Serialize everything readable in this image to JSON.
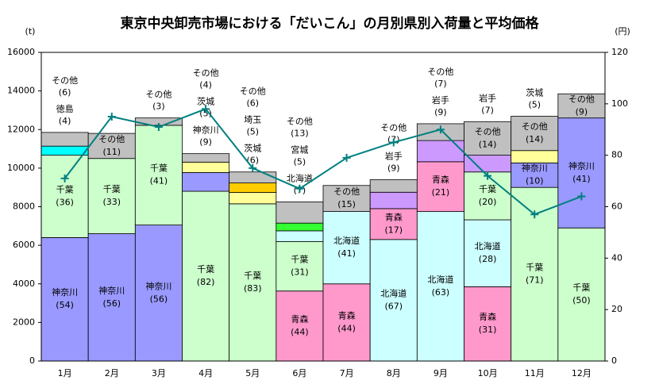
{
  "chart_data": {
    "type": "stacked_bar_line",
    "title": "東京中央卸売市場における「だいこん」の月別県別入荷量と平均価格",
    "y_unit": "(t)",
    "y2_unit": "(円)",
    "categories": [
      "1月",
      "2月",
      "3月",
      "4月",
      "5月",
      "6月",
      "7月",
      "8月",
      "9月",
      "10月",
      "11月",
      "12月"
    ],
    "ylim": [
      0,
      16000
    ],
    "yticks": [
      0,
      2000,
      4000,
      6000,
      8000,
      10000,
      12000,
      14000,
      16000
    ],
    "y2lim": [
      0,
      120
    ],
    "y2ticks": [
      0,
      20,
      40,
      60,
      80,
      100,
      120
    ],
    "stacks": [
      [
        {
          "name": "神奈川",
          "value": 6400,
          "share": "(54)",
          "color": "#9999ff"
        },
        {
          "name": "千葉",
          "value": 4270,
          "share": "(36)",
          "color": "#ccffcc"
        },
        {
          "name": "徳島",
          "value": 470,
          "share": "(4)",
          "color": "#00ffff"
        },
        {
          "name": "その他",
          "value": 710,
          "share": "(6)",
          "color": "#c0c0c0"
        }
      ],
      [
        {
          "name": "神奈川",
          "value": 6600,
          "share": "(56)",
          "color": "#9999ff"
        },
        {
          "name": "千葉",
          "value": 3900,
          "share": "(33)",
          "color": "#ccffcc"
        },
        {
          "name": "その他",
          "value": 1300,
          "share": "(11)",
          "color": "#c0c0c0"
        }
      ],
      [
        {
          "name": "神奈川",
          "value": 7050,
          "share": "(56)",
          "color": "#9999ff"
        },
        {
          "name": "千葉",
          "value": 5170,
          "share": "(41)",
          "color": "#ccffcc"
        },
        {
          "name": "その他",
          "value": 380,
          "share": "(3)",
          "color": "#c0c0c0"
        }
      ],
      [
        {
          "name": "千葉",
          "value": 8800,
          "share": "(82)",
          "color": "#ccffcc"
        },
        {
          "name": "神奈川",
          "value": 970,
          "share": "(9)",
          "color": "#9999ff"
        },
        {
          "name": "茨城",
          "value": 540,
          "share": "(5)",
          "color": "#ffff99"
        },
        {
          "name": "その他",
          "value": 440,
          "share": "(4)",
          "color": "#c0c0c0"
        }
      ],
      [
        {
          "name": "千葉",
          "value": 8150,
          "share": "(83)",
          "color": "#ccffcc"
        },
        {
          "name": "茨城",
          "value": 590,
          "share": "(6)",
          "color": "#ffff99"
        },
        {
          "name": "埼玉",
          "value": 490,
          "share": "(5)",
          "color": "#ffcc00"
        },
        {
          "name": "その他",
          "value": 570,
          "share": "(6)",
          "color": "#c0c0c0"
        }
      ],
      [
        {
          "name": "青森",
          "value": 3630,
          "share": "(44)",
          "color": "#ff99cc"
        },
        {
          "name": "千葉",
          "value": 2560,
          "share": "(31)",
          "color": "#ccffcc"
        },
        {
          "name": "北海道",
          "value": 560,
          "share": "(7)",
          "color": "#ccffff"
        },
        {
          "name": "宮城",
          "value": 400,
          "share": "(5)",
          "color": "#33ff33"
        },
        {
          "name": "その他",
          "value": 1100,
          "share": "(13)",
          "color": "#c0c0c0"
        }
      ],
      [
        {
          "name": "青森",
          "value": 4000,
          "share": "(44)",
          "color": "#ff99cc"
        },
        {
          "name": "北海道",
          "value": 3750,
          "share": "(41)",
          "color": "#ccffff"
        },
        {
          "name": "その他",
          "value": 1350,
          "share": "(15)",
          "color": "#c0c0c0"
        }
      ],
      [
        {
          "name": "北海道",
          "value": 6300,
          "share": "(67)",
          "color": "#ccffff"
        },
        {
          "name": "青森",
          "value": 1600,
          "share": "(17)",
          "color": "#ff99cc"
        },
        {
          "name": "岩手",
          "value": 850,
          "share": "(9)",
          "color": "#cc99ff"
        },
        {
          "name": "その他",
          "value": 650,
          "share": "(7)",
          "color": "#c0c0c0"
        }
      ],
      [
        {
          "name": "北海道",
          "value": 7750,
          "share": "(63)",
          "color": "#ccffff"
        },
        {
          "name": "青森",
          "value": 2580,
          "share": "(21)",
          "color": "#ff99cc"
        },
        {
          "name": "岩手",
          "value": 1100,
          "share": "(9)",
          "color": "#cc99ff"
        },
        {
          "name": "その他",
          "value": 870,
          "share": "(7)",
          "color": "#c0c0c0"
        }
      ],
      [
        {
          "name": "青森",
          "value": 3850,
          "share": "(31)",
          "color": "#ff99cc"
        },
        {
          "name": "北海道",
          "value": 3470,
          "share": "(28)",
          "color": "#ccffff"
        },
        {
          "name": "千葉",
          "value": 2480,
          "share": "(20)",
          "color": "#ccffcc"
        },
        {
          "name": "岩手",
          "value": 870,
          "share": "(7)",
          "color": "#cc99ff"
        },
        {
          "name": "その他",
          "value": 1740,
          "share": "(14)",
          "color": "#c0c0c0"
        }
      ],
      [
        {
          "name": "千葉",
          "value": 9000,
          "share": "(71)",
          "color": "#ccffcc"
        },
        {
          "name": "神奈川",
          "value": 1270,
          "share": "(10)",
          "color": "#9999ff"
        },
        {
          "name": "茨城",
          "value": 640,
          "share": "(5)",
          "color": "#ffff99"
        },
        {
          "name": "その他",
          "value": 1780,
          "share": "(14)",
          "color": "#c0c0c0"
        }
      ],
      [
        {
          "name": "千葉",
          "value": 6900,
          "share": "(50)",
          "color": "#ccffcc"
        },
        {
          "name": "神奈川",
          "value": 5700,
          "share": "(41)",
          "color": "#9999ff"
        },
        {
          "name": "その他",
          "value": 1250,
          "share": "(9)",
          "color": "#c0c0c0"
        }
      ]
    ],
    "price": {
      "axis": "y2",
      "color": "#008080",
      "values": [
        71,
        95,
        91,
        98,
        75,
        67,
        79,
        85,
        90,
        72,
        57,
        64
      ]
    }
  }
}
